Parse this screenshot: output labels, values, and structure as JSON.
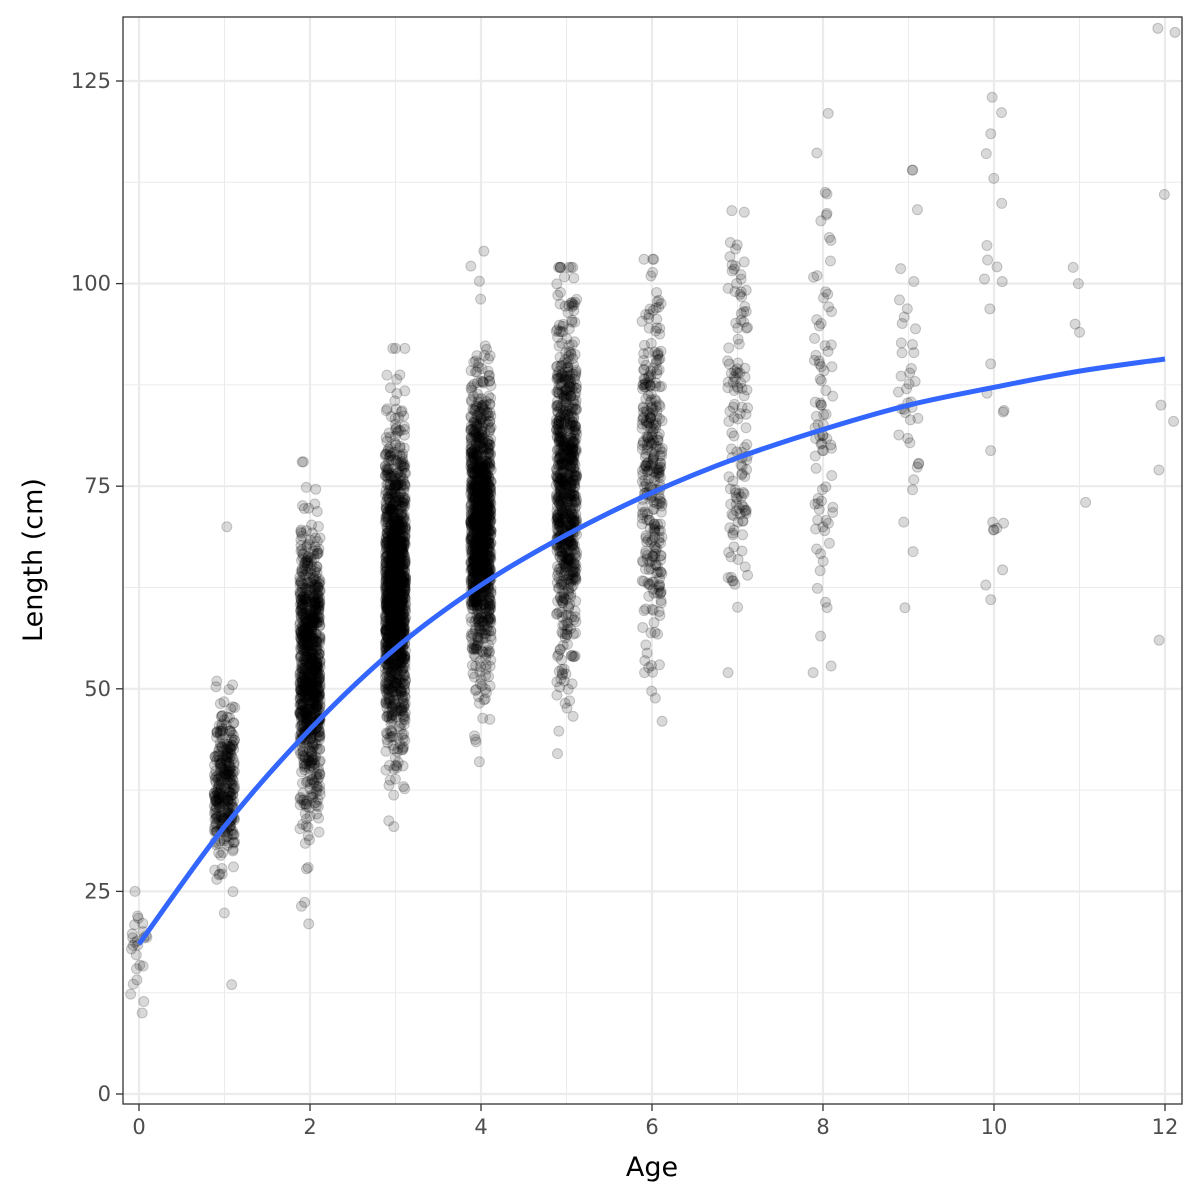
{
  "chart_data": {
    "type": "scatter",
    "title": "",
    "xlabel": "Age",
    "ylabel": "Length (cm)",
    "xlim": [
      -0.2,
      12.2
    ],
    "ylim": [
      -2,
      134
    ],
    "x_ticks": [
      0,
      2,
      4,
      6,
      8,
      10,
      12
    ],
    "y_ticks": [
      0,
      25,
      50,
      75,
      100,
      125
    ],
    "x_tick_labels": [
      "0",
      "2",
      "4",
      "6",
      "8",
      "10",
      "12"
    ],
    "y_tick_labels": [
      "0",
      "25",
      "50",
      "75",
      "100",
      "125"
    ],
    "grid": true,
    "legend": "none",
    "point_color": "#000000",
    "point_alpha": 0.15,
    "jitter_width": 0.12,
    "groups": [
      {
        "age": 0,
        "n": 25,
        "mean": 18,
        "sd": 3.2,
        "min": 10,
        "max": 25
      },
      {
        "age": 1,
        "n": 320,
        "mean": 38,
        "sd": 4.5,
        "min": 13.5,
        "max": 70
      },
      {
        "age": 2,
        "n": 900,
        "mean": 52,
        "sd": 8.5,
        "min": 21,
        "max": 78
      },
      {
        "age": 3,
        "n": 1400,
        "mean": 62,
        "sd": 9,
        "min": 33,
        "max": 92
      },
      {
        "age": 4,
        "n": 1200,
        "mean": 70,
        "sd": 8.5,
        "min": 41,
        "max": 104
      },
      {
        "age": 5,
        "n": 800,
        "mean": 75,
        "sd": 10,
        "min": 42,
        "max": 102
      },
      {
        "age": 6,
        "n": 320,
        "mean": 77,
        "sd": 11,
        "min": 46,
        "max": 103
      },
      {
        "age": 7,
        "n": 130,
        "mean": 82,
        "sd": 12,
        "min": 52,
        "max": 109
      },
      {
        "age": 8,
        "n": 85,
        "mean": 83,
        "sd": 14,
        "min": 52,
        "max": 121
      },
      {
        "age": 9,
        "n": 40,
        "mean": 84,
        "sd": 13,
        "min": 60,
        "max": 114
      },
      {
        "age": 10,
        "n": 25,
        "mean": 88,
        "sd": 16,
        "min": 61,
        "max": 123
      }
    ],
    "sparse_points": [
      {
        "age": 11,
        "length": 73
      },
      {
        "age": 11,
        "length": 94
      },
      {
        "age": 11,
        "length": 95
      },
      {
        "age": 11,
        "length": 100
      },
      {
        "age": 11,
        "length": 102
      },
      {
        "age": 12,
        "length": 56
      },
      {
        "age": 12,
        "length": 77
      },
      {
        "age": 12,
        "length": 83
      },
      {
        "age": 12,
        "length": 85
      },
      {
        "age": 12,
        "length": 111
      },
      {
        "age": 12,
        "length": 131
      },
      {
        "age": 12,
        "length": 131.5
      }
    ],
    "fit_curve": {
      "color": "#3366FF",
      "model": "von Bertalanffy",
      "x": [
        0,
        1,
        2,
        3,
        4,
        5,
        6,
        7,
        8,
        9,
        10,
        11,
        12
      ],
      "y": [
        18.5,
        33,
        45,
        55,
        62.8,
        69,
        74.2,
        78.5,
        82,
        85,
        87.2,
        89.2,
        90.7
      ]
    }
  }
}
